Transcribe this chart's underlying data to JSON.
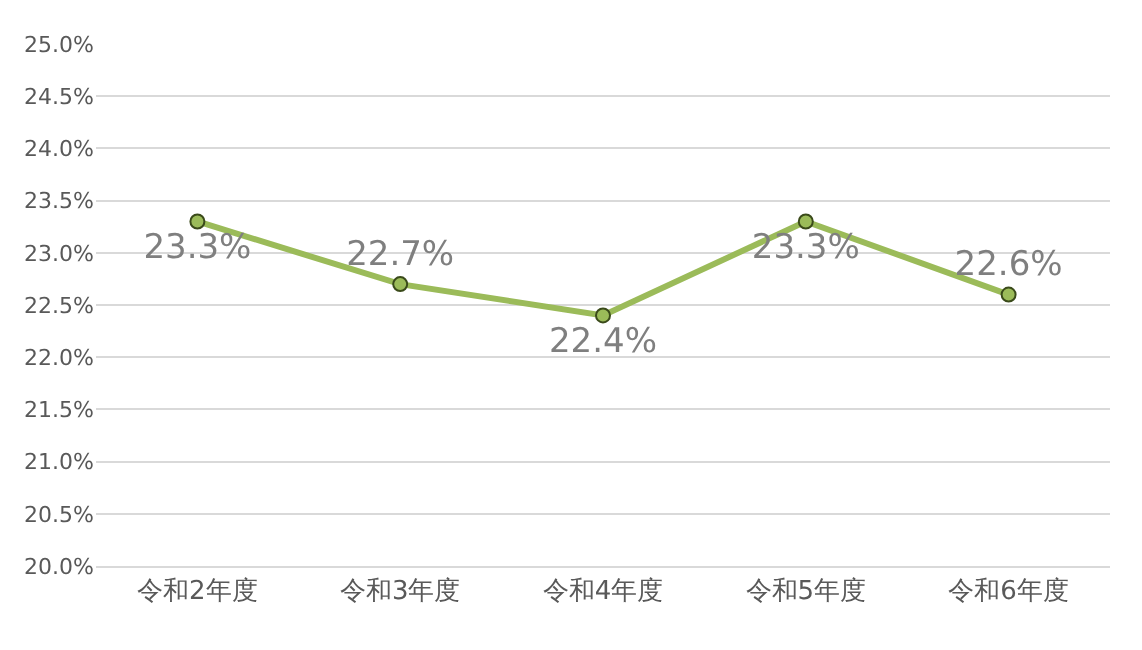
{
  "chart_data": {
    "type": "line",
    "categories": [
      "令和2年度",
      "令和3年度",
      "令和4年度",
      "令和5年度",
      "令和6年度"
    ],
    "series": [
      {
        "color": "#9bbb59",
        "values": [
          23.3,
          22.7,
          22.4,
          23.3,
          22.6
        ]
      }
    ],
    "value_labels": [
      "23.3%",
      "22.7%",
      "22.4%",
      "23.3%",
      "22.6%"
    ],
    "ylim": [
      20,
      25
    ],
    "yticks": [
      {
        "value": 20,
        "label": "20.0%"
      },
      {
        "value": 20.5,
        "label": "20.5%"
      },
      {
        "value": 21,
        "label": "21.0%"
      },
      {
        "value": 21.5,
        "label": "21.5%"
      },
      {
        "value": 22,
        "label": "22.0%"
      },
      {
        "value": 22.5,
        "label": "22.5%"
      },
      {
        "value": 23,
        "label": "23.0%"
      },
      {
        "value": 23.5,
        "label": "23.5%"
      },
      {
        "value": 24,
        "label": "24.0%"
      },
      {
        "value": 24.5,
        "label": "24.5%"
      },
      {
        "value": 25,
        "label": "25.0%"
      }
    ],
    "grid": "y",
    "marker": "circle",
    "line_style": "solid"
  }
}
